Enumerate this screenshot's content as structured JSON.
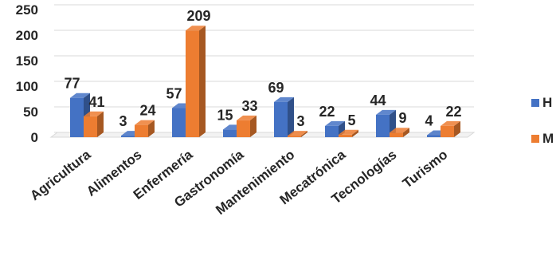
{
  "chart_data": {
    "type": "bar",
    "style": "3d-clustered-column",
    "categories": [
      "Agricultura",
      "Alimentos",
      "Enfermería",
      "Gastronomía",
      "Mantenimiento",
      "Mecatrónica",
      "Tecnologías",
      "Turismo"
    ],
    "series": [
      {
        "name": "H",
        "values": [
          77,
          3,
          57,
          15,
          69,
          22,
          44,
          4
        ],
        "color": "#4472C4"
      },
      {
        "name": "M",
        "values": [
          41,
          24,
          209,
          33,
          3,
          5,
          9,
          22
        ],
        "color": "#ED7D31"
      }
    ],
    "y_ticks": [
      "0",
      "50",
      "100",
      "150",
      "200",
      "250"
    ],
    "ylim": [
      0,
      250
    ],
    "grid": true,
    "legend_position": "right",
    "data_labels": true
  }
}
